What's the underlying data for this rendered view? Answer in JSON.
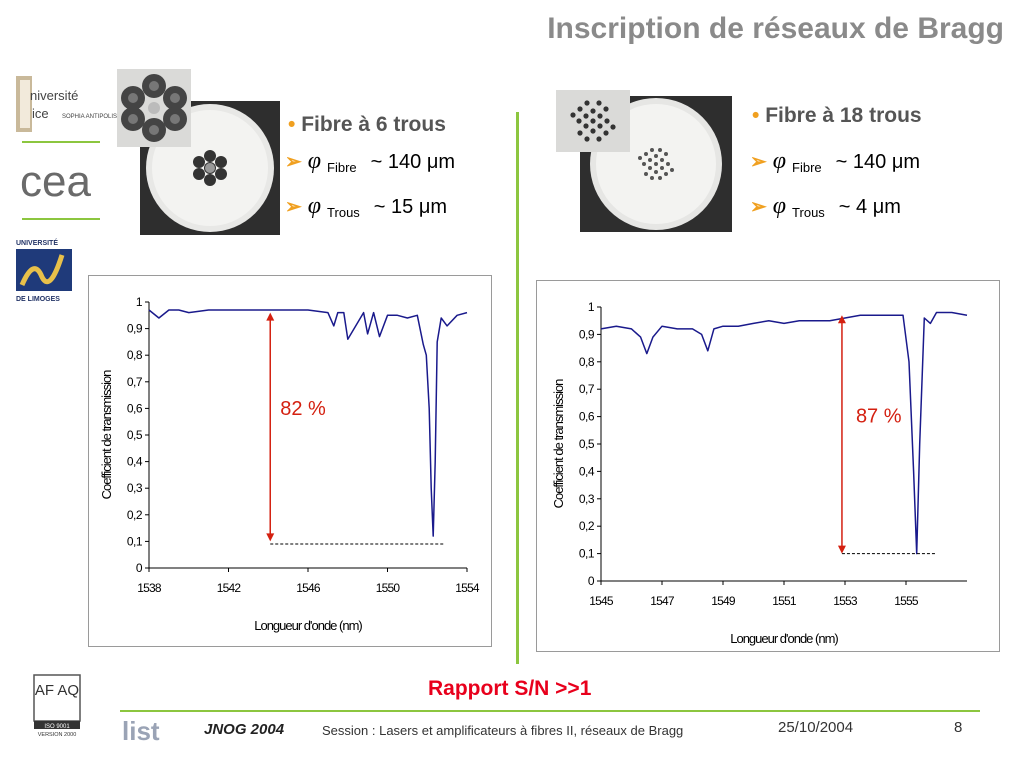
{
  "header": {
    "title": "Inscription de réseaux de Bragg"
  },
  "logos": {
    "nice": {
      "text1": "niversité",
      "text2": "ice",
      "text3": "SOPHIA ANTIPOLIS"
    },
    "cea": {
      "text": "cea"
    },
    "limoges": {
      "top": "UNIVERSITÉ",
      "bottom": "DE LIMOGES"
    },
    "afaq": {
      "letters": "AF AQ",
      "iso": "ISO 9001",
      "version": "VERSION 2000"
    },
    "list": {
      "text": "list"
    }
  },
  "left_panel": {
    "heading": "Fibre à 6 trous",
    "specs": [
      {
        "symbol": "φ",
        "sub": "Fibre",
        "value": "~ 140 μm"
      },
      {
        "symbol": "φ",
        "sub": "Trous",
        "value": "~ 15 μm"
      }
    ]
  },
  "right_panel": {
    "heading": "Fibre à 18 trous",
    "specs": [
      {
        "symbol": "φ",
        "sub": "Fibre",
        "value": "~ 140 μm"
      },
      {
        "symbol": "φ",
        "sub": "Trous",
        "value": "~ 4 μm"
      }
    ]
  },
  "colors": {
    "accent_green": "#8cc63f",
    "orange": "#f0a020",
    "red": "#e8001c",
    "series": "#1a1a8c",
    "annotation": "#d42010"
  },
  "chart_data": [
    {
      "type": "line",
      "xlabel": "Longueur d'onde (nm)",
      "ylabel": "Coefficient de transmission",
      "xlim": [
        1538,
        1554
      ],
      "ylim": [
        0,
        1
      ],
      "xticks": [
        "1538",
        "1542",
        "1546",
        "1550",
        "1554"
      ],
      "yticks": [
        "0",
        "0,1",
        "0,2",
        "0,3",
        "0,4",
        "0,5",
        "0,6",
        "0,7",
        "0,8",
        "0,9",
        "1"
      ],
      "grid": false,
      "annotation": "82 %",
      "annotation_arrow": {
        "x": 1544.1,
        "y_from": 0.1,
        "y_to": 0.96
      },
      "reference_line": {
        "y": 0.09,
        "x_from": 1544.1,
        "x_to": 1552.9
      },
      "x": [
        1538.0,
        1538.5,
        1539.0,
        1539.5,
        1540.0,
        1541.0,
        1542.0,
        1543.0,
        1544.0,
        1545.0,
        1546.0,
        1547.0,
        1547.3,
        1547.5,
        1547.8,
        1548.0,
        1548.8,
        1549.0,
        1549.3,
        1549.6,
        1550.0,
        1550.5,
        1551.0,
        1551.5,
        1551.8,
        1551.95,
        1552.1,
        1552.2,
        1552.3,
        1552.4,
        1552.5,
        1552.7,
        1553.0,
        1553.5,
        1554.0
      ],
      "y": [
        0.97,
        0.94,
        0.97,
        0.97,
        0.96,
        0.97,
        0.97,
        0.97,
        0.97,
        0.97,
        0.97,
        0.96,
        0.91,
        0.96,
        0.96,
        0.86,
        0.96,
        0.88,
        0.96,
        0.87,
        0.95,
        0.95,
        0.94,
        0.95,
        0.84,
        0.8,
        0.6,
        0.3,
        0.12,
        0.4,
        0.85,
        0.94,
        0.91,
        0.95,
        0.96
      ]
    },
    {
      "type": "line",
      "xlabel": "Longueur d'onde (nm)",
      "ylabel": "Coefficient de transmission",
      "xlim": [
        1545,
        1557
      ],
      "ylim": [
        0,
        1
      ],
      "xticks": [
        "1545",
        "1547",
        "1549",
        "1551",
        "1553",
        "1555"
      ],
      "yticks": [
        "0",
        "0,1",
        "0,2",
        "0,3",
        "0,4",
        "0,5",
        "0,6",
        "0,7",
        "0,8",
        "0,9",
        "1"
      ],
      "grid": false,
      "annotation": "87 %",
      "annotation_arrow": {
        "x": 1552.9,
        "y_from": 0.1,
        "y_to": 0.97
      },
      "reference_line": {
        "y": 0.1,
        "x_from": 1552.9,
        "x_to": 1556.0
      },
      "x": [
        1545.0,
        1545.5,
        1546.0,
        1546.3,
        1546.5,
        1546.7,
        1547.0,
        1547.5,
        1548.0,
        1548.3,
        1548.5,
        1548.7,
        1549.0,
        1549.5,
        1550.0,
        1550.5,
        1551.0,
        1551.5,
        1552.0,
        1552.5,
        1553.0,
        1553.5,
        1554.0,
        1554.5,
        1554.9,
        1555.1,
        1555.25,
        1555.35,
        1555.45,
        1555.6,
        1555.8,
        1556.0,
        1556.5,
        1557.0
      ],
      "y": [
        0.92,
        0.93,
        0.92,
        0.89,
        0.83,
        0.89,
        0.93,
        0.92,
        0.92,
        0.9,
        0.84,
        0.92,
        0.93,
        0.93,
        0.94,
        0.95,
        0.94,
        0.95,
        0.95,
        0.95,
        0.96,
        0.97,
        0.97,
        0.97,
        0.97,
        0.8,
        0.4,
        0.1,
        0.5,
        0.96,
        0.94,
        0.98,
        0.98,
        0.97
      ]
    }
  ],
  "footer": {
    "rapport": "Rapport S/N >>1",
    "event": "JNOG 2004",
    "session": "Session : Lasers et amplificateurs à fibres II, réseaux de Bragg",
    "date": "25/10/2004",
    "page": "8"
  }
}
